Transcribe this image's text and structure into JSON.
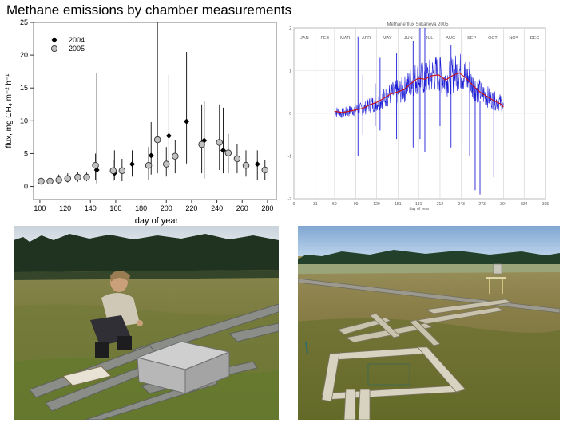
{
  "slide": {
    "title": "Methane emissions by chamber measurements"
  },
  "chart_data": [
    {
      "type": "scatter",
      "title": "",
      "xlabel": "day of year",
      "ylabel": "flux, mg CH₄ m⁻² h⁻¹",
      "xlim": [
        95,
        287
      ],
      "ylim": [
        -2,
        25
      ],
      "xticks": [
        100,
        120,
        140,
        160,
        180,
        200,
        220,
        240,
        260,
        280
      ],
      "yticks": [
        0,
        5,
        10,
        15,
        20,
        25
      ],
      "grid": false,
      "legend": "top-left",
      "series": [
        {
          "name": "2004",
          "marker": "filled-diamond",
          "color": "#000000",
          "points": [
            {
              "x": 145,
              "y": 2.5,
              "lo": 0.5,
              "hi": 17.3
            },
            {
              "x": 159,
              "y": 2.0,
              "lo": 1.0,
              "hi": 5.5
            },
            {
              "x": 173,
              "y": 3.4,
              "lo": 1.5,
              "hi": 5.5
            },
            {
              "x": 188,
              "y": 4.7,
              "lo": 1.8,
              "hi": 9.8
            },
            {
              "x": 202,
              "y": 7.7,
              "lo": 2.5,
              "hi": 17.0
            },
            {
              "x": 216,
              "y": 9.9,
              "lo": 3.5,
              "hi": 20.5
            },
            {
              "x": 230,
              "y": 7.0,
              "lo": 1.2,
              "hi": 13.0
            },
            {
              "x": 245,
              "y": 5.5,
              "lo": 2.0,
              "hi": 12.0
            },
            {
              "x": 272,
              "y": 3.4,
              "lo": 1.0,
              "hi": 5.5
            }
          ]
        },
        {
          "name": "2005",
          "marker": "open-circle",
          "color": "#c0c0c0",
          "points": [
            {
              "x": 101,
              "y": 0.8,
              "lo": 0.3,
              "hi": 1.3
            },
            {
              "x": 108,
              "y": 0.8,
              "lo": 0.4,
              "hi": 1.2
            },
            {
              "x": 115,
              "y": 1.0,
              "lo": 0.4,
              "hi": 1.8
            },
            {
              "x": 122,
              "y": 1.2,
              "lo": 0.6,
              "hi": 2.0
            },
            {
              "x": 130,
              "y": 1.4,
              "lo": 0.7,
              "hi": 2.2
            },
            {
              "x": 137,
              "y": 1.4,
              "lo": 0.8,
              "hi": 2.1
            },
            {
              "x": 144,
              "y": 3.2,
              "lo": 1.0,
              "hi": 5.0
            },
            {
              "x": 158,
              "y": 2.4,
              "lo": 0.8,
              "hi": 4.0
            },
            {
              "x": 165,
              "y": 2.4,
              "lo": 0.8,
              "hi": 4.2
            },
            {
              "x": 186,
              "y": 3.2,
              "lo": 1.0,
              "hi": 6.0
            },
            {
              "x": 193,
              "y": 7.1,
              "lo": 2.0,
              "hi": 25.0
            },
            {
              "x": 200,
              "y": 3.4,
              "lo": 1.5,
              "hi": 6.0
            },
            {
              "x": 207,
              "y": 4.6,
              "lo": 2.0,
              "hi": 7.0
            },
            {
              "x": 228,
              "y": 6.4,
              "lo": 2.0,
              "hi": 12.5
            },
            {
              "x": 242,
              "y": 6.7,
              "lo": 2.5,
              "hi": 12.5
            },
            {
              "x": 249,
              "y": 5.1,
              "lo": 2.0,
              "hi": 8.0
            },
            {
              "x": 256,
              "y": 4.2,
              "lo": 2.0,
              "hi": 6.5
            },
            {
              "x": 263,
              "y": 3.2,
              "lo": 1.5,
              "hi": 5.5
            },
            {
              "x": 278,
              "y": 2.5,
              "lo": 1.0,
              "hi": 4.0
            }
          ]
        }
      ]
    },
    {
      "type": "line",
      "title": "Methane flux  Siikaneva 2005",
      "xlabel": "day of year",
      "ylabel": "",
      "xlim": [
        0,
        365
      ],
      "ylim": [
        -2,
        2
      ],
      "xticks": [
        0,
        31,
        59,
        90,
        120,
        151,
        181,
        212,
        243,
        273,
        304,
        334,
        365
      ],
      "yticks": [
        -2,
        -1,
        0,
        1,
        2
      ],
      "month_labels": [
        "JAN",
        "FEB",
        "MAR",
        "APR",
        "MAY",
        "JUN",
        "JUL",
        "AUG",
        "SEP",
        "OCT",
        "NOV",
        "DEC"
      ],
      "month_starts": [
        0,
        31,
        59,
        90,
        120,
        151,
        181,
        212,
        243,
        273,
        304,
        334
      ],
      "grid": true,
      "series": [
        {
          "name": "",
          "color": "#1f1fd6",
          "x": [
            59,
            70,
            80,
            90,
            100,
            110,
            120,
            130,
            140,
            150,
            160,
            170,
            180,
            190,
            200,
            210,
            220,
            230,
            240,
            250,
            260,
            270,
            280,
            290,
            300,
            304
          ],
          "y": [
            0.05,
            0.0,
            0.05,
            0.1,
            0.1,
            0.2,
            0.25,
            0.35,
            0.45,
            0.5,
            0.55,
            0.75,
            0.85,
            0.8,
            0.9,
            0.95,
            0.75,
            0.9,
            1.0,
            0.85,
            0.65,
            0.5,
            0.4,
            0.3,
            0.25,
            0.15
          ]
        },
        {
          "name": "",
          "color": "#d01010",
          "x": [
            59,
            70,
            80,
            90,
            100,
            110,
            120,
            130,
            140,
            150,
            160,
            170,
            180,
            190,
            200,
            210,
            220,
            230,
            240,
            250,
            260,
            270,
            280,
            290,
            300,
            304
          ],
          "y": [
            0.05,
            0.02,
            0.05,
            0.08,
            0.12,
            0.2,
            0.26,
            0.35,
            0.45,
            0.5,
            0.56,
            0.7,
            0.82,
            0.8,
            0.88,
            0.9,
            0.78,
            0.88,
            0.95,
            0.82,
            0.65,
            0.5,
            0.4,
            0.3,
            0.22,
            0.15
          ]
        }
      ],
      "spikes": [
        {
          "x": 93,
          "lo": -1.0,
          "hi": 1.8
        },
        {
          "x": 100,
          "lo": -0.5,
          "hi": 0.9
        },
        {
          "x": 118,
          "lo": -0.3,
          "hi": 0.7
        },
        {
          "x": 125,
          "lo": -0.4,
          "hi": 1.3
        },
        {
          "x": 149,
          "lo": -0.6,
          "hi": 1.4
        },
        {
          "x": 173,
          "lo": -0.8,
          "hi": 1.7
        },
        {
          "x": 183,
          "lo": -0.6,
          "hi": 2.0
        },
        {
          "x": 190,
          "lo": -0.9,
          "hi": 2.0
        },
        {
          "x": 212,
          "lo": -0.3,
          "hi": 1.3
        },
        {
          "x": 228,
          "lo": -0.8,
          "hi": 1.6
        },
        {
          "x": 244,
          "lo": -0.7,
          "hi": 1.8
        },
        {
          "x": 255,
          "lo": -1.0,
          "hi": 1.2
        },
        {
          "x": 263,
          "lo": -1.8,
          "hi": 0.6
        },
        {
          "x": 270,
          "lo": -1.9,
          "hi": 0.3
        },
        {
          "x": 290,
          "lo": -1.5,
          "hi": 0.5
        }
      ]
    }
  ],
  "photos": [
    {
      "name": "photo-researcher-chamber"
    },
    {
      "name": "photo-boardwalk-plots"
    }
  ]
}
